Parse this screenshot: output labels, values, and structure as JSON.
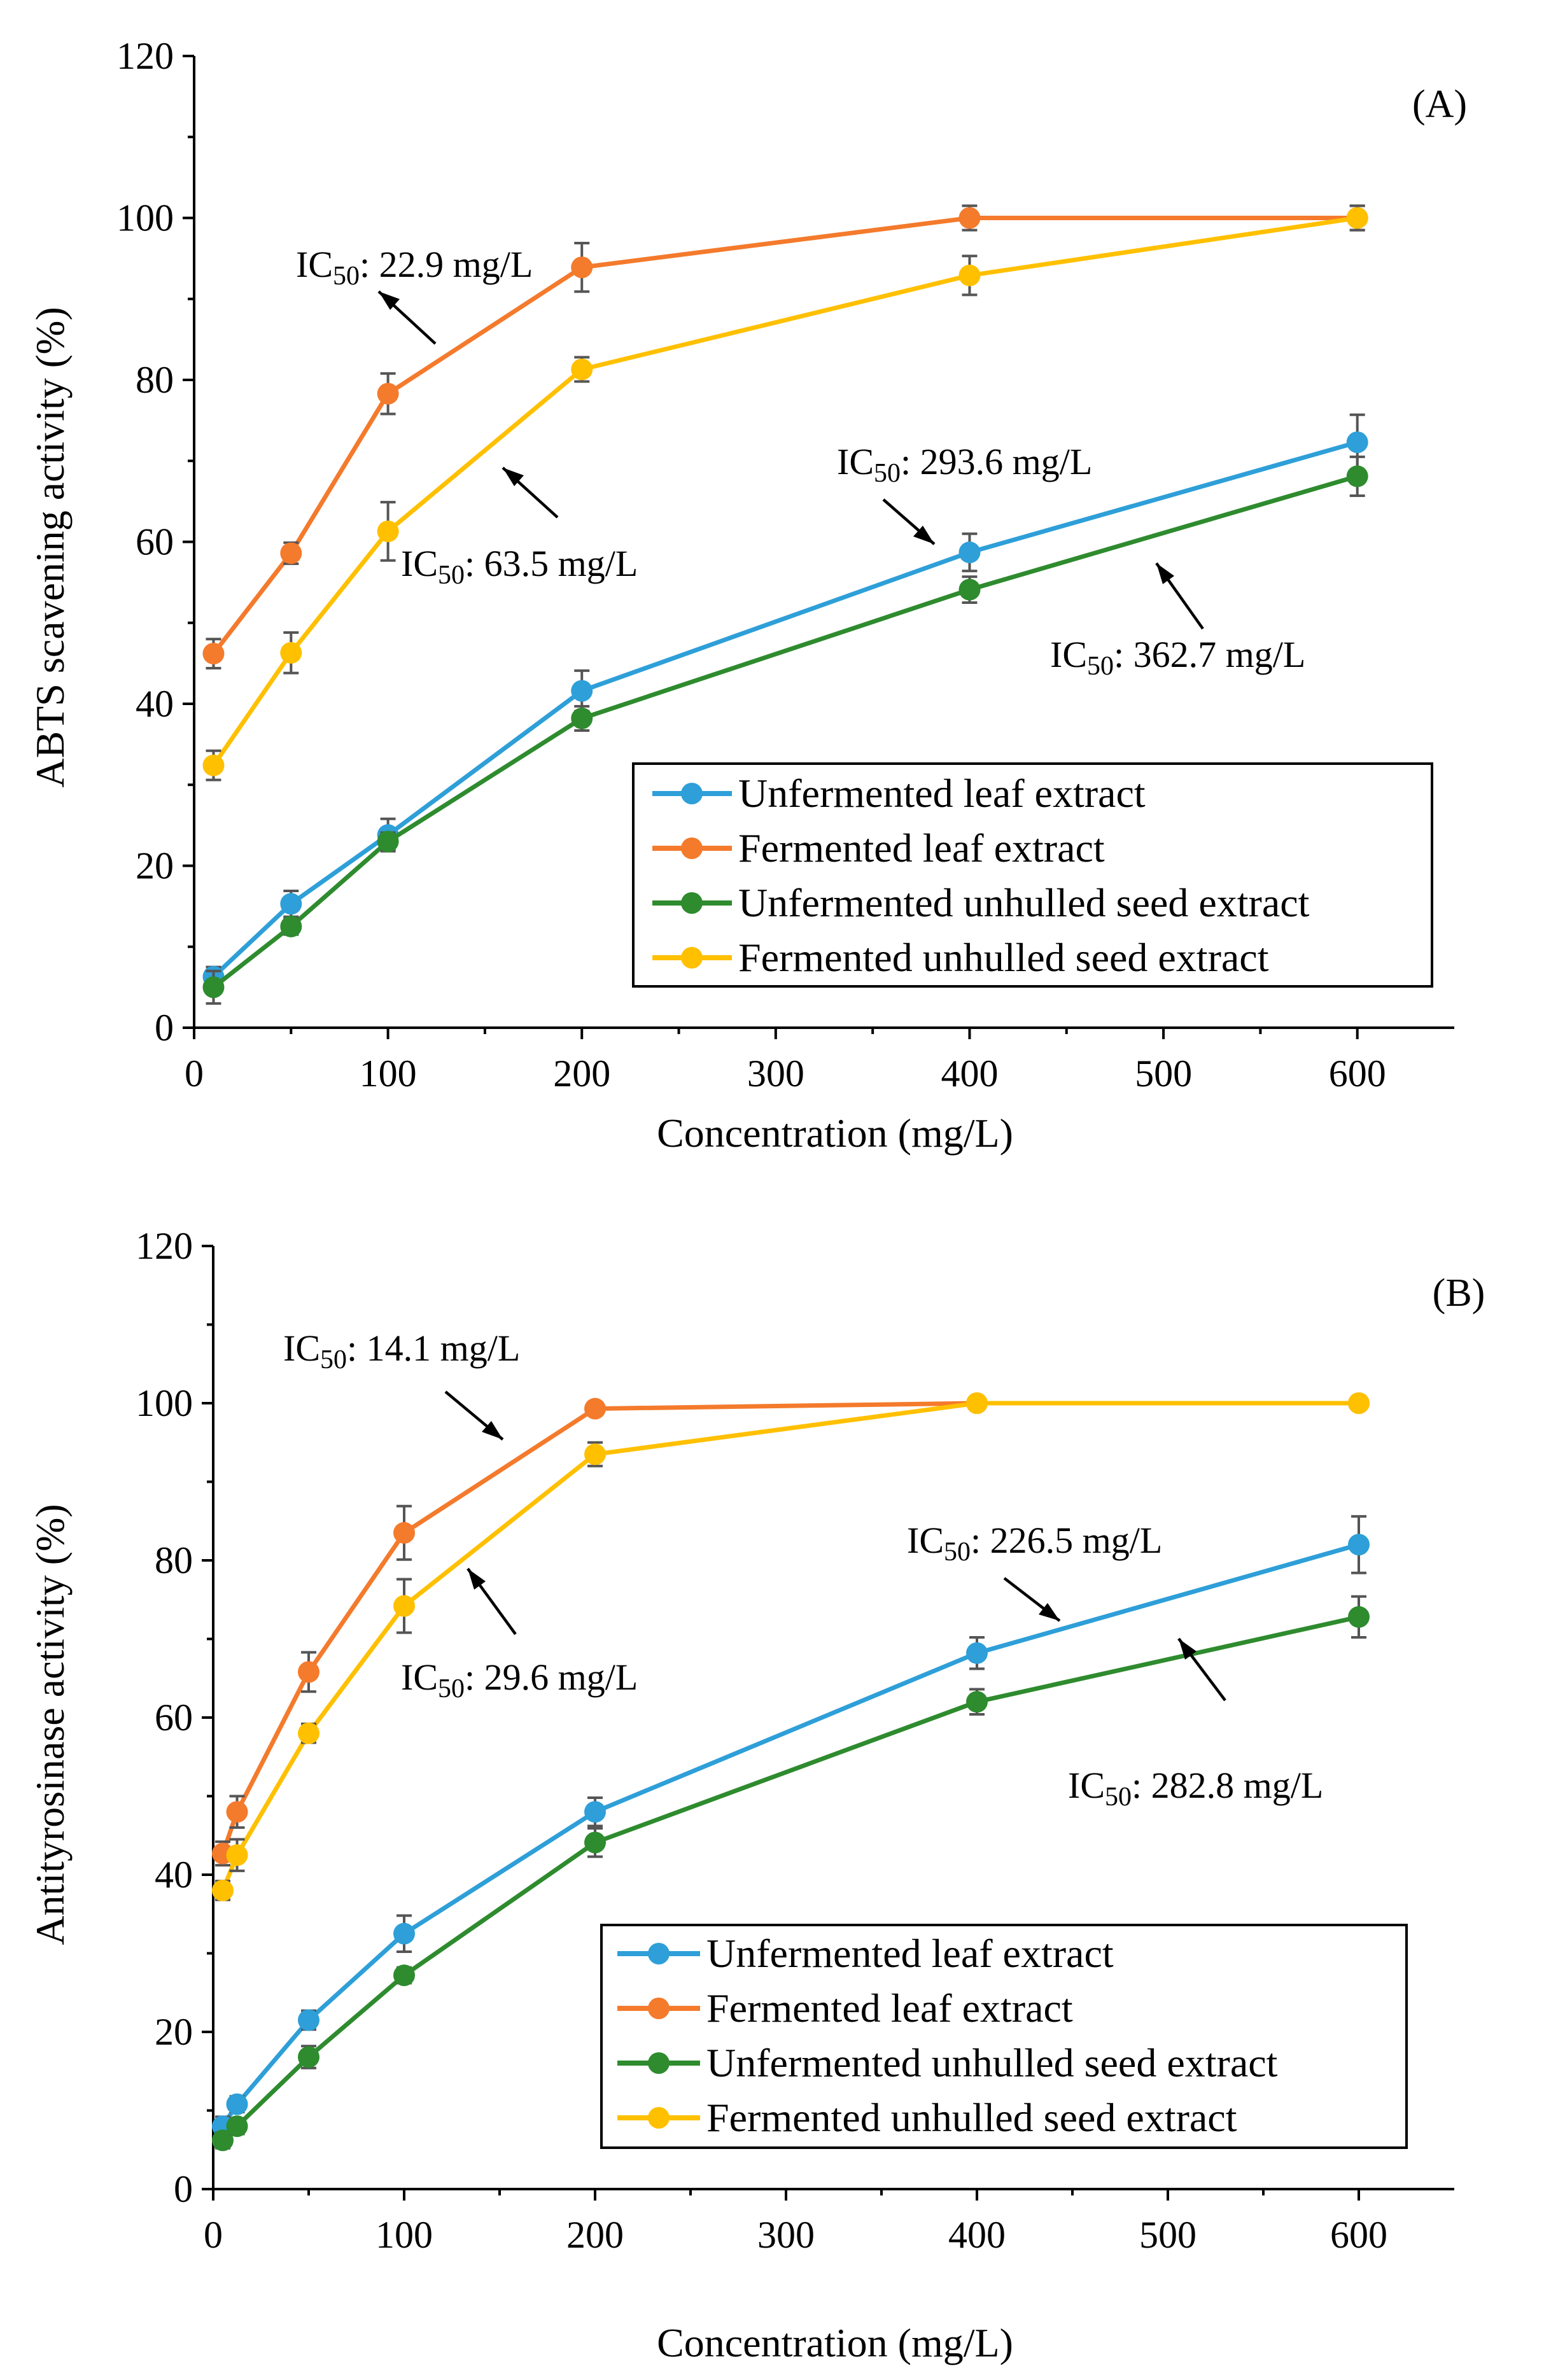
{
  "colors": {
    "unfermented_leaf": "#2E9FD8",
    "fermented_leaf": "#F47A2C",
    "unfermented_seed": "#2E8B2E",
    "fermented_seed": "#FFC000",
    "axis": "#000000",
    "error_bar": "#555555"
  },
  "chart_data": [
    {
      "type": "line",
      "panel_label": "(A)",
      "xlabel": "Concentration  (mg/L)",
      "ylabel": "ABTS scavening  activity  (%)",
      "xlim": [
        0,
        650
      ],
      "ylim": [
        0,
        120
      ],
      "xticks": [
        0,
        100,
        200,
        300,
        400,
        500,
        600
      ],
      "yticks": [
        0,
        20,
        40,
        60,
        80,
        100,
        120
      ],
      "legend_position": "lower-right",
      "series": [
        {
          "name": "Unfermented leaf extract",
          "color": "#2E9FD8",
          "x": [
            10,
            50,
            100,
            200,
            400,
            600
          ],
          "y": [
            6.3,
            15.3,
            23.8,
            41.6,
            58.7,
            72.3
          ],
          "err": [
            1.2,
            1.6,
            2.0,
            2.5,
            2.3,
            3.4
          ]
        },
        {
          "name": "Fermented leaf extract",
          "color": "#F47A2C",
          "x": [
            10,
            50,
            100,
            200,
            400,
            600
          ],
          "y": [
            46.2,
            58.6,
            78.3,
            93.9,
            100.0,
            100.0
          ],
          "err": [
            1.8,
            1.3,
            2.5,
            3.0,
            1.5,
            1.5
          ]
        },
        {
          "name": "Unfermented unhulled seed extract",
          "color": "#2E8B2E",
          "x": [
            10,
            50,
            100,
            200,
            400,
            600
          ],
          "y": [
            5.0,
            12.5,
            23.0,
            38.2,
            54.1,
            68.1
          ],
          "err": [
            2.0,
            1.0,
            1.1,
            1.5,
            1.6,
            2.4
          ]
        },
        {
          "name": "Fermented unhulled seed extract",
          "color": "#FFC000",
          "x": [
            10,
            50,
            100,
            200,
            400,
            600
          ],
          "y": [
            32.4,
            46.3,
            61.3,
            81.3,
            92.9,
            100.0
          ],
          "err": [
            1.8,
            2.5,
            3.6,
            1.5,
            2.4,
            1.5
          ]
        }
      ],
      "annotations": [
        {
          "prefix": "IC",
          "sub": "50",
          "text": ": 22.9 mg/L"
        },
        {
          "prefix": "IC",
          "sub": "50",
          "text": ": 63.5 mg/L"
        },
        {
          "prefix": "IC",
          "sub": "50",
          "text": ": 293.6 mg/L"
        },
        {
          "prefix": "IC",
          "sub": "50",
          "text": ": 362.7 mg/L"
        }
      ]
    },
    {
      "type": "line",
      "panel_label": "(B)",
      "xlabel": "Concentration  (mg/L)",
      "ylabel": "Antityrosinase activity (%)",
      "xlim": [
        0,
        650
      ],
      "ylim": [
        0,
        120
      ],
      "xticks": [
        0,
        100,
        200,
        300,
        400,
        500,
        600
      ],
      "yticks": [
        0,
        20,
        40,
        60,
        80,
        100,
        120
      ],
      "legend_position": "lower-right",
      "series": [
        {
          "name": "Unfermented leaf extract",
          "color": "#2E9FD8",
          "x": [
            5,
            12.5,
            50,
            100,
            200,
            400,
            600
          ],
          "y": [
            8.0,
            10.8,
            21.5,
            32.5,
            48.0,
            68.2,
            82.0
          ],
          "err": [
            1.2,
            1.0,
            1.2,
            2.3,
            1.8,
            2.0,
            3.6
          ]
        },
        {
          "name": "Fermented leaf extract",
          "color": "#F47A2C",
          "x": [
            5,
            12.5,
            50,
            100,
            200,
            400,
            600
          ],
          "y": [
            42.7,
            48.0,
            65.8,
            83.5,
            99.3,
            100.0,
            100.0
          ],
          "err": [
            1.5,
            2.0,
            2.5,
            3.4,
            0.8,
            0.6,
            0.6
          ]
        },
        {
          "name": "Unfermented unhulled seed extract",
          "color": "#2E8B2E",
          "x": [
            5,
            12.5,
            50,
            100,
            200,
            400,
            600
          ],
          "y": [
            6.2,
            8.0,
            16.8,
            27.2,
            44.1,
            62.0,
            72.8
          ],
          "err": [
            1.0,
            1.0,
            1.4,
            1.0,
            1.8,
            1.6,
            2.6
          ]
        },
        {
          "name": "Fermented unhulled seed extract",
          "color": "#FFC000",
          "x": [
            5,
            12.5,
            50,
            100,
            200,
            400,
            600
          ],
          "y": [
            38.0,
            42.5,
            58.0,
            74.2,
            93.5,
            100.0,
            100.0
          ],
          "err": [
            1.2,
            2.0,
            1.2,
            3.4,
            1.5,
            0.6,
            0.6
          ]
        }
      ],
      "annotations": [
        {
          "prefix": "IC",
          "sub": "50",
          "text": ": 14.1 mg/L"
        },
        {
          "prefix": "IC",
          "sub": "50",
          "text": ": 29.6 mg/L"
        },
        {
          "prefix": "IC",
          "sub": "50",
          "text": ": 226.5 mg/L"
        },
        {
          "prefix": "IC",
          "sub": "50",
          "text": ": 282.8 mg/L"
        }
      ]
    }
  ]
}
